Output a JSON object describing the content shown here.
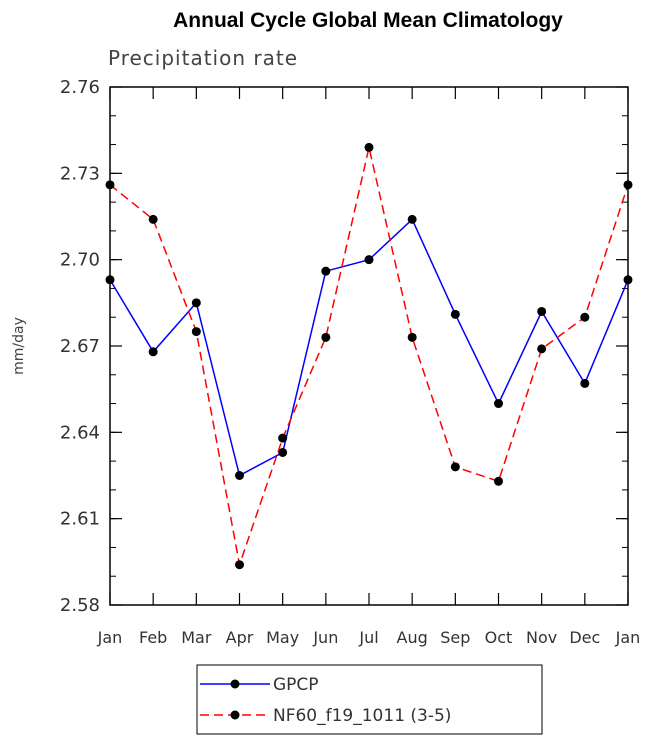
{
  "chart_data": {
    "type": "line",
    "title": "Annual Cycle Global Mean Climatology",
    "subtitle": "Precipitation rate",
    "ylabel": "mm/day",
    "categories": [
      "Jan",
      "Feb",
      "Mar",
      "Apr",
      "May",
      "Jun",
      "Jul",
      "Aug",
      "Sep",
      "Oct",
      "Nov",
      "Dec",
      "Jan"
    ],
    "ylim": [
      2.58,
      2.76
    ],
    "yticks": [
      "2.58",
      "2.61",
      "2.64",
      "2.67",
      "2.70",
      "2.73",
      "2.76"
    ],
    "legend_position": "bottom-center",
    "series": [
      {
        "name": "GPCP",
        "color": "#0000ff",
        "line_style": "solid",
        "marker": "filled-circle",
        "values": [
          2.693,
          2.668,
          2.685,
          2.625,
          2.633,
          2.696,
          2.7,
          2.714,
          2.681,
          2.65,
          2.682,
          2.657,
          2.693
        ]
      },
      {
        "name": "NF60_f19_1011 (3-5)",
        "color": "#ff0000",
        "line_style": "dashed",
        "marker": "filled-circle",
        "values": [
          2.726,
          2.714,
          2.675,
          2.594,
          2.638,
          2.673,
          2.739,
          2.673,
          2.628,
          2.623,
          2.669,
          2.68,
          2.726
        ]
      }
    ]
  }
}
